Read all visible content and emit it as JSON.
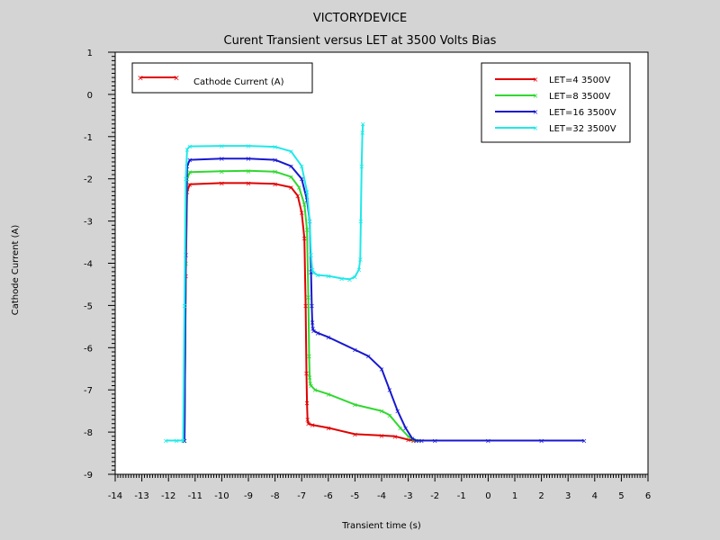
{
  "chart_data": {
    "type": "line",
    "title": "VICTORYDEVICE",
    "subtitle": "Curent Transient versus LET at 3500 Volts Bias",
    "xlabel": "Transient time (s)",
    "ylabel": "Cathode Current (A)",
    "xlim": [
      -14,
      6
    ],
    "ylim": [
      -9,
      1
    ],
    "xticks": [
      -14,
      -13,
      -12,
      -11,
      -10,
      -9,
      -8,
      -7,
      -6,
      -5,
      -4,
      -3,
      -2,
      -1,
      0,
      1,
      2,
      3,
      4,
      5,
      6
    ],
    "yticks": [
      1,
      0,
      -1,
      -2,
      -3,
      -4,
      -5,
      -6,
      -7,
      -8,
      -9
    ],
    "grid": false,
    "legend_left": {
      "label": "Cathode Current (A)",
      "color": "#e00000",
      "placement": "top-left"
    },
    "legend_placement": "top-right",
    "series": [
      {
        "name": "LET=4 3500V",
        "color": "#e00000",
        "x": [
          -11.4,
          -11.35,
          -11.3,
          -11.2,
          -10,
          -9,
          -8,
          -7.4,
          -7.15,
          -7.0,
          -6.9,
          -6.85,
          -6.82,
          -6.8,
          -6.78,
          -6.75,
          -6.6,
          -6.0,
          -5.0,
          -4.0,
          -3.5,
          -3.0,
          -2.8,
          -2.6
        ],
        "y": [
          -8.2,
          -4.3,
          -2.3,
          -2.13,
          -2.1,
          -2.1,
          -2.12,
          -2.2,
          -2.4,
          -2.8,
          -3.4,
          -5.0,
          -6.6,
          -7.3,
          -7.7,
          -7.8,
          -7.83,
          -7.9,
          -8.05,
          -8.08,
          -8.1,
          -8.18,
          -8.2,
          -8.2
        ]
      },
      {
        "name": "LET=8 3500V",
        "color": "#30d830",
        "x": [
          -11.4,
          -11.35,
          -11.3,
          -11.2,
          -10,
          -9,
          -8,
          -7.4,
          -7.1,
          -6.9,
          -6.8,
          -6.75,
          -6.72,
          -6.7,
          -6.68,
          -6.65,
          -6.5,
          -6.0,
          -5.0,
          -4.0,
          -3.7,
          -3.3,
          -3.0,
          -2.8,
          -2.6
        ],
        "y": [
          -8.2,
          -4.0,
          -2.0,
          -1.84,
          -1.82,
          -1.81,
          -1.83,
          -1.95,
          -2.2,
          -2.6,
          -3.2,
          -4.8,
          -6.2,
          -6.7,
          -6.85,
          -6.9,
          -7.0,
          -7.1,
          -7.35,
          -7.5,
          -7.6,
          -7.9,
          -8.1,
          -8.18,
          -8.2
        ]
      },
      {
        "name": "LET=16 3500V",
        "color": "#1818d0",
        "x": [
          -11.4,
          -11.35,
          -11.3,
          -11.2,
          -10,
          -9,
          -8,
          -7.4,
          -7.0,
          -6.8,
          -6.7,
          -6.65,
          -6.62,
          -6.6,
          -6.58,
          -6.55,
          -6.4,
          -6.0,
          -5.0,
          -4.5,
          -4.0,
          -3.7,
          -3.4,
          -3.1,
          -2.85,
          -2.7,
          -2.5,
          -2.0,
          0,
          2,
          3.6
        ],
        "y": [
          -8.2,
          -3.8,
          -1.7,
          -1.55,
          -1.52,
          -1.52,
          -1.55,
          -1.7,
          -2.0,
          -2.5,
          -3.0,
          -4.2,
          -5.0,
          -5.4,
          -5.55,
          -5.6,
          -5.65,
          -5.75,
          -6.05,
          -6.2,
          -6.5,
          -7.0,
          -7.5,
          -7.9,
          -8.15,
          -8.2,
          -8.2,
          -8.2,
          -8.2,
          -8.2,
          -8.2
        ]
      },
      {
        "name": "LET=32 3500V",
        "color": "#20e8e8",
        "x": [
          -12.1,
          -11.7,
          -11.45,
          -11.4,
          -11.35,
          -11.3,
          -11.2,
          -10,
          -9,
          -8,
          -7.4,
          -7.0,
          -6.8,
          -6.7,
          -6.65,
          -6.6,
          -6.55,
          -6.4,
          -6.0,
          -5.5,
          -5.2,
          -5.0,
          -4.85,
          -4.8,
          -4.78,
          -4.75,
          -4.72,
          -4.7
        ],
        "y": [
          -8.2,
          -8.2,
          -8.2,
          -5.0,
          -2.0,
          -1.3,
          -1.23,
          -1.22,
          -1.22,
          -1.24,
          -1.35,
          -1.7,
          -2.3,
          -3.0,
          -3.8,
          -4.15,
          -4.22,
          -4.28,
          -4.3,
          -4.36,
          -4.38,
          -4.32,
          -4.15,
          -3.9,
          -3.0,
          -1.7,
          -0.9,
          -0.7
        ]
      }
    ]
  }
}
